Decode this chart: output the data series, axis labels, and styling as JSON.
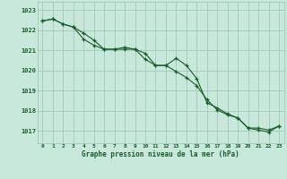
{
  "title": "Graphe pression niveau de la mer (hPa)",
  "background_color": "#c8e8dc",
  "grid_color": "#a0c8b8",
  "line_color": "#1a5c2a",
  "marker_color": "#1a5c2a",
  "xlim": [
    -0.5,
    23.5
  ],
  "ylim": [
    1016.4,
    1023.4
  ],
  "xticks": [
    0,
    1,
    2,
    3,
    4,
    5,
    6,
    7,
    8,
    9,
    10,
    11,
    12,
    13,
    14,
    15,
    16,
    17,
    18,
    19,
    20,
    21,
    22,
    23
  ],
  "yticks": [
    1017,
    1018,
    1019,
    1020,
    1021,
    1022,
    1023
  ],
  "series1": [
    1022.45,
    1022.55,
    1022.3,
    1022.15,
    1021.85,
    1021.5,
    1021.05,
    1021.05,
    1021.05,
    1021.05,
    1020.85,
    1020.25,
    1020.25,
    1020.6,
    1020.25,
    1019.6,
    1018.4,
    1018.15,
    1017.85,
    1017.65,
    1017.15,
    1017.05,
    1016.95,
    1017.25
  ],
  "series2": [
    1022.45,
    1022.55,
    1022.3,
    1022.15,
    1021.55,
    1021.25,
    1021.05,
    1021.05,
    1021.15,
    1021.05,
    1020.55,
    1020.25,
    1020.25,
    1019.95,
    1019.65,
    1019.25,
    1018.55,
    1018.05,
    1017.8,
    1017.65,
    1017.15,
    1017.15,
    1017.05,
    1017.25
  ]
}
